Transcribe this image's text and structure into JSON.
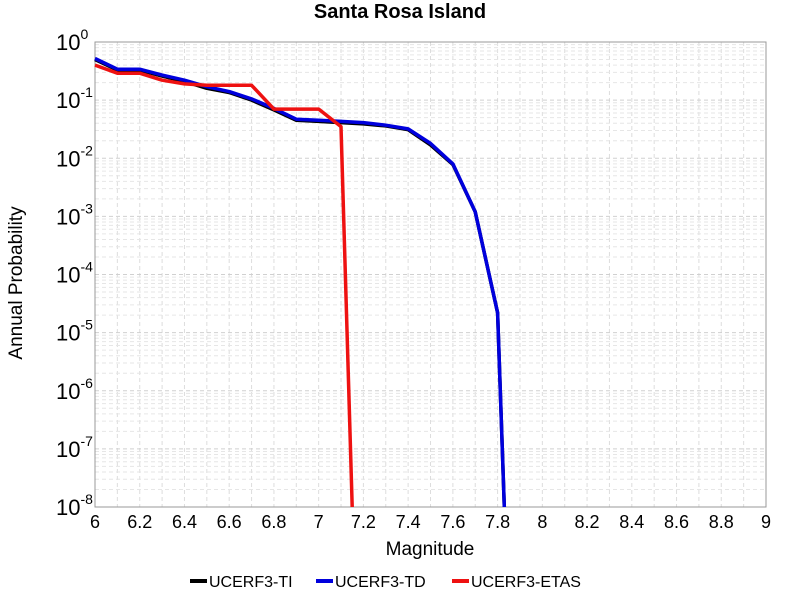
{
  "chart_data": {
    "type": "line",
    "title": "Santa Rosa Island",
    "xlabel": "Magnitude",
    "ylabel": "Annual Probability",
    "x_scale": "linear",
    "y_scale": "log",
    "xlim": [
      6,
      9
    ],
    "ylim": [
      1e-08,
      1
    ],
    "x_ticks": [
      "6",
      "6.2",
      "6.4",
      "6.6",
      "6.8",
      "7",
      "7.2",
      "7.4",
      "7.6",
      "7.8",
      "8",
      "8.2",
      "8.4",
      "8.6",
      "8.8",
      "9"
    ],
    "y_ticks": [
      {
        "base": "10",
        "exp": "0"
      },
      {
        "base": "10",
        "exp": "-1"
      },
      {
        "base": "10",
        "exp": "-2"
      },
      {
        "base": "10",
        "exp": "-3"
      },
      {
        "base": "10",
        "exp": "-4"
      },
      {
        "base": "10",
        "exp": "-5"
      },
      {
        "base": "10",
        "exp": "-6"
      },
      {
        "base": "10",
        "exp": "-7"
      },
      {
        "base": "10",
        "exp": "-8"
      }
    ],
    "grid": true,
    "legend_position": "bottom",
    "series": [
      {
        "name": "UCERF3-TI",
        "color": "#000000",
        "x": [
          6.0,
          6.1,
          6.2,
          6.3,
          6.4,
          6.5,
          6.6,
          6.7,
          6.8,
          6.9,
          7.0,
          7.1,
          7.2,
          7.3,
          7.4,
          7.5,
          7.6,
          7.7,
          7.8,
          7.83
        ],
        "y": [
          0.5,
          0.33,
          0.33,
          0.26,
          0.21,
          0.16,
          0.135,
          0.1,
          0.068,
          0.045,
          0.043,
          0.041,
          0.039,
          0.036,
          0.031,
          0.017,
          0.0078,
          0.0012,
          2.2e-05,
          1e-08
        ]
      },
      {
        "name": "UCERF3-TD",
        "color": "#0000dd",
        "x": [
          6.0,
          6.1,
          6.2,
          6.3,
          6.4,
          6.5,
          6.6,
          6.7,
          6.8,
          6.9,
          7.0,
          7.1,
          7.2,
          7.3,
          7.4,
          7.5,
          7.6,
          7.7,
          7.8,
          7.83
        ],
        "y": [
          0.52,
          0.34,
          0.34,
          0.27,
          0.22,
          0.17,
          0.14,
          0.105,
          0.072,
          0.047,
          0.045,
          0.043,
          0.041,
          0.037,
          0.032,
          0.018,
          0.008,
          0.0012,
          2.2e-05,
          1e-08
        ]
      },
      {
        "name": "UCERF3-ETAS",
        "color": "#ee1111",
        "x": [
          6.0,
          6.1,
          6.2,
          6.3,
          6.4,
          6.5,
          6.6,
          6.7,
          6.8,
          6.9,
          7.0,
          7.1,
          7.15
        ],
        "y": [
          0.4,
          0.29,
          0.29,
          0.22,
          0.19,
          0.18,
          0.18,
          0.18,
          0.07,
          0.07,
          0.07,
          0.035,
          1e-08
        ]
      }
    ]
  }
}
